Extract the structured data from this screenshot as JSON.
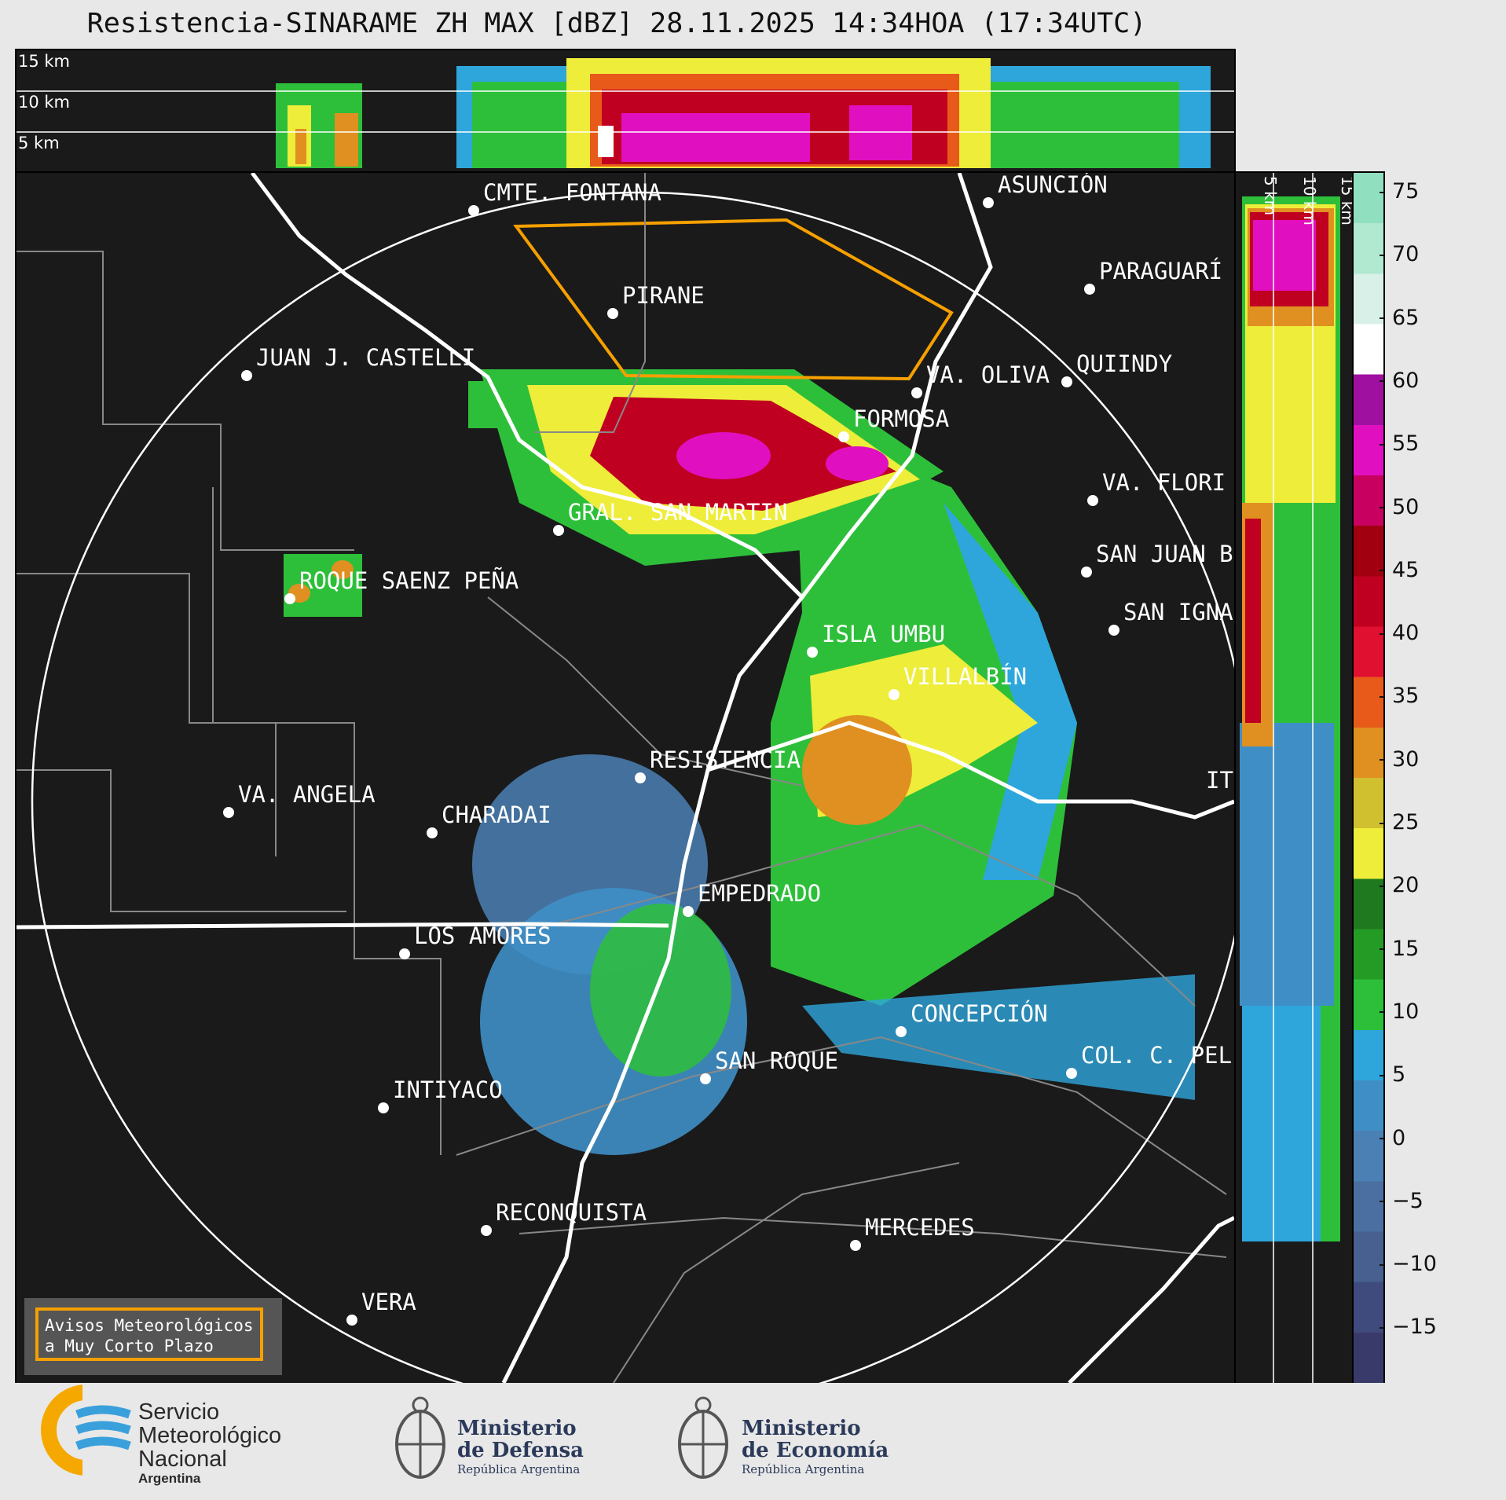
{
  "title": "Resistencia-SINARAME ZH MAX [dBZ] 28.11.2025 14:34HOA (17:34UTC)",
  "top_panel": {
    "altitude_labels": [
      "15 km",
      "10 km",
      "5 km"
    ]
  },
  "side_panel": {
    "altitude_labels": [
      "5 km",
      "10 km",
      "15 km"
    ]
  },
  "colorbar": {
    "unit": "dBZ",
    "ticks": [
      "75",
      "70",
      "65",
      "60",
      "55",
      "50",
      "45",
      "40",
      "35",
      "30",
      "25",
      "20",
      "15",
      "10",
      "5",
      "0",
      "−5",
      "−10",
      "−15"
    ],
    "colors": [
      "#3a3a6a",
      "#3f4a7d",
      "#47608f",
      "#4a6fa0",
      "#4b80b4",
      "#3f8fc6",
      "#2ea6dc",
      "#2ebf3a",
      "#249b24",
      "#1f7a1f",
      "#eded3a",
      "#d0c030",
      "#e09020",
      "#e85a1a",
      "#e01030",
      "#c00020",
      "#a00010",
      "#c80060",
      "#e010c0",
      "#a010a0",
      "#ffffff",
      "#d8f0e8",
      "#b0e8d0",
      "#90e0c0"
    ]
  },
  "cities": [
    {
      "name": "CMTE. FONTANA"
    },
    {
      "name": "ASUNCIÓN"
    },
    {
      "name": "PARAGUARÍ"
    },
    {
      "name": "PIRANE"
    },
    {
      "name": "JUAN J. CASTELLI"
    },
    {
      "name": "VA. OLIVA"
    },
    {
      "name": "QUIINDY"
    },
    {
      "name": "FORMOSA"
    },
    {
      "name": "VA. FLORI"
    },
    {
      "name": "GRAL. SAN MARTIN"
    },
    {
      "name": "SAN JUAN B"
    },
    {
      "name": "ROQUE SAENZ PEÑA"
    },
    {
      "name": "SAN IGNA"
    },
    {
      "name": "ISLA UMBU"
    },
    {
      "name": "VILLALBÍN"
    },
    {
      "name": "RESISTENCIA"
    },
    {
      "name": "VA. ANGELA"
    },
    {
      "name": "CHARADAI"
    },
    {
      "name": "IT"
    },
    {
      "name": "EMPEDRADO"
    },
    {
      "name": "LOS AMORES"
    },
    {
      "name": "CONCEPCIÓN"
    },
    {
      "name": "SAN ROQUE"
    },
    {
      "name": "COL. C. PEL"
    },
    {
      "name": "INTIYACO"
    },
    {
      "name": "RECONQUISTA"
    },
    {
      "name": "MERCEDES"
    },
    {
      "name": "VERA"
    }
  ],
  "warning": {
    "line1": "Avisos Meteorológicos",
    "line2": "a Muy Corto Plazo"
  },
  "footer": {
    "smn": {
      "line1": "Servicio",
      "line2": "Meteorológico",
      "line3": "Nacional",
      "line4": "Argentina"
    },
    "defensa": {
      "line1": "Ministerio",
      "line2": "de Defensa",
      "line3": "República Argentina"
    },
    "economia": {
      "line1": "Ministerio",
      "line2": "de Economía",
      "line3": "República Argentina"
    }
  }
}
